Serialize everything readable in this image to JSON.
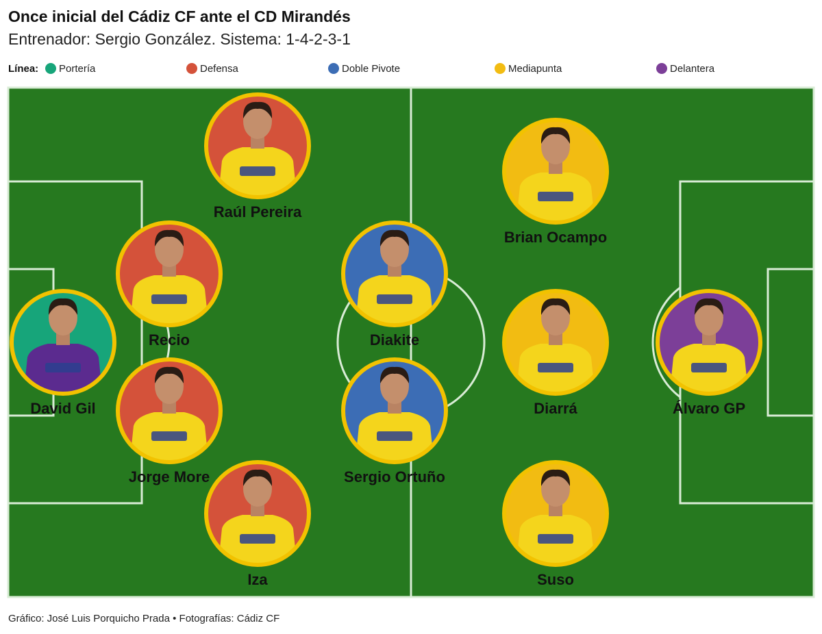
{
  "header": {
    "title": "Once inicial del Cádiz CF ante el CD Mirandés",
    "subtitle": "Entrenador: Sergio González. Sistema: 1-4-2-3-1"
  },
  "legend_label": "Línea:",
  "lines": [
    {
      "label": "Portería",
      "color": "#17a57a",
      "players": [
        "David Gil"
      ]
    },
    {
      "label": "Defensa",
      "color": "#d4523a",
      "players": [
        "Raúl Pereira",
        "Recio",
        "Jorge More",
        "Iza"
      ]
    },
    {
      "label": "Doble Pivote",
      "color": "#3c6db5",
      "players": [
        "Diakite",
        "Sergio Ortuño"
      ]
    },
    {
      "label": "Mediapunta",
      "color": "#f2bc12",
      "players": [
        "Brian Ocampo",
        "Diarrá",
        "Suso"
      ]
    },
    {
      "label": "Delantera",
      "color": "#7c3f98",
      "players": [
        "Álvaro GP"
      ]
    }
  ],
  "footer": "Gráfico: José Luis Porquicho Prada • Fotografías: Cádiz CF"
}
